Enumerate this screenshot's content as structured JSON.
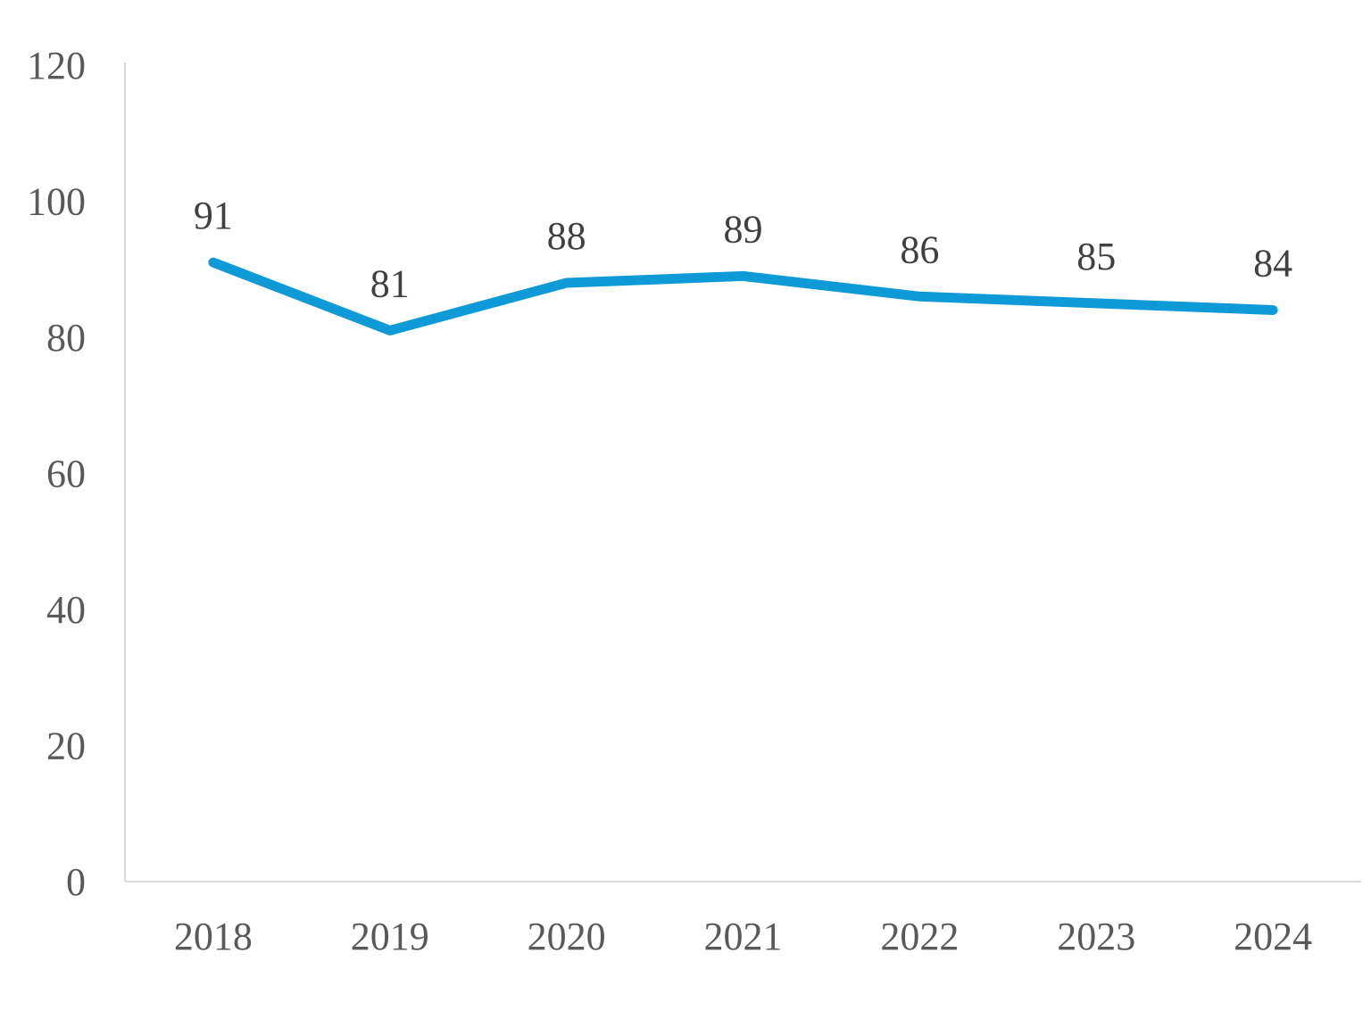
{
  "chart_data": {
    "type": "line",
    "title": "",
    "xlabel": "",
    "ylabel": "",
    "categories": [
      "2018",
      "2019",
      "2020",
      "2021",
      "2022",
      "2023",
      "2024"
    ],
    "series": [
      {
        "values": [
          91,
          81,
          88,
          89,
          86,
          85,
          84
        ],
        "color": "#0E9AD7"
      }
    ],
    "data_labels": [
      "91",
      "81",
      "88",
      "89",
      "86",
      "85",
      "84"
    ],
    "ylim": [
      0,
      120
    ],
    "yticks": [
      0,
      20,
      40,
      60,
      80,
      100,
      120
    ],
    "ytick_labels": [
      "0",
      "20",
      "40",
      "60",
      "80",
      "100",
      "120"
    ],
    "grid": false,
    "legend": "none",
    "axis_color": "#D9D9D9",
    "text_color": "#595959"
  }
}
